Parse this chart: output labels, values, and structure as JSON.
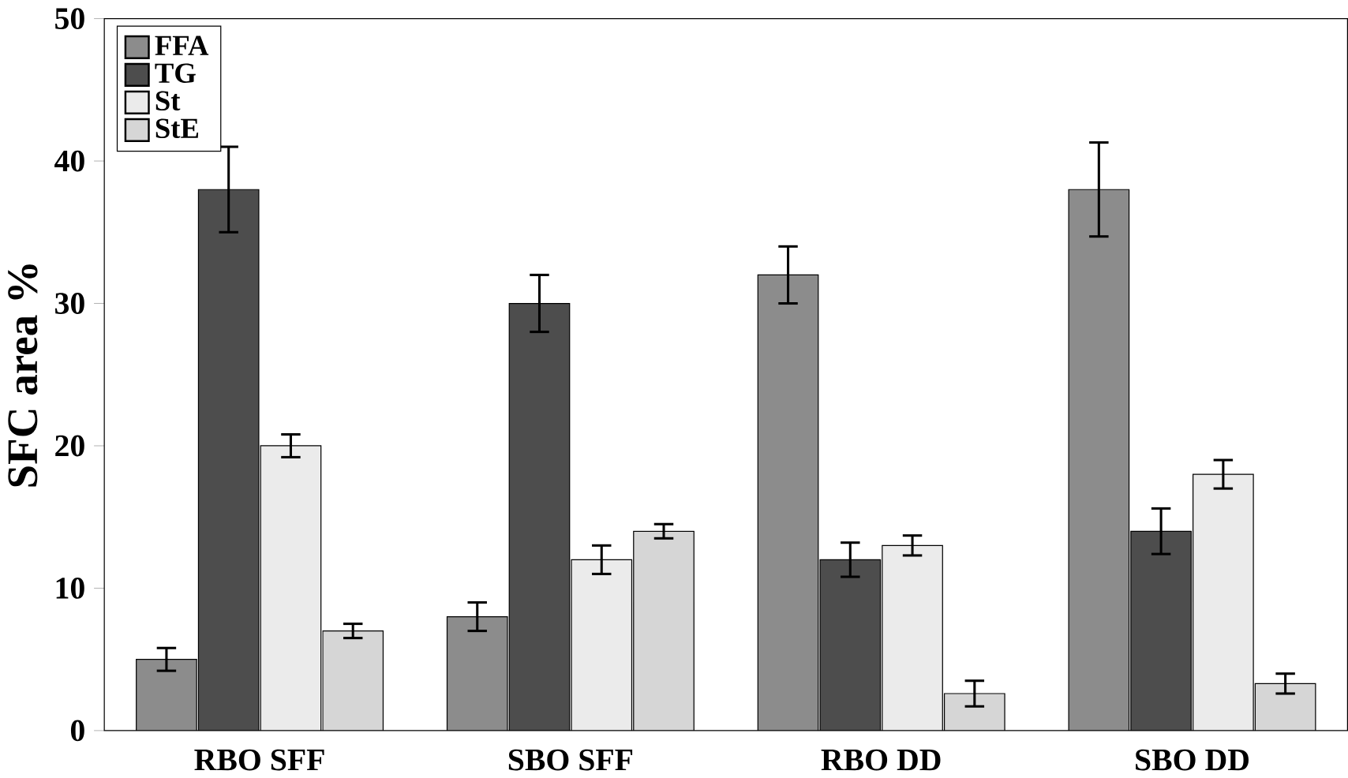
{
  "chart_data": {
    "type": "bar",
    "ylabel": "SFC area %",
    "categories": [
      "RBO SFF",
      "SBO SFF",
      "RBO DD",
      "SBO DD"
    ],
    "series": [
      {
        "name": "FFA",
        "color": "#8c8c8c",
        "values": [
          5,
          8,
          32,
          38
        ],
        "errors": [
          0.8,
          1,
          2,
          3.3
        ]
      },
      {
        "name": "TG",
        "color": "#4d4d4d",
        "values": [
          38,
          30,
          12,
          14
        ],
        "errors": [
          3,
          2,
          1.2,
          1.6
        ]
      },
      {
        "name": "St",
        "color": "#ebebeb",
        "values": [
          20,
          12,
          13,
          18
        ],
        "errors": [
          0.8,
          1,
          0.7,
          1
        ]
      },
      {
        "name": "StE",
        "color": "#d6d6d6",
        "values": [
          7,
          14,
          2.6,
          3.3
        ],
        "errors": [
          0.5,
          0.5,
          0.9,
          0.7
        ]
      }
    ],
    "ylim": [
      0,
      50
    ],
    "yticks": [
      0,
      10,
      20,
      30,
      40,
      50
    ],
    "legend": "top left",
    "grid": false
  }
}
